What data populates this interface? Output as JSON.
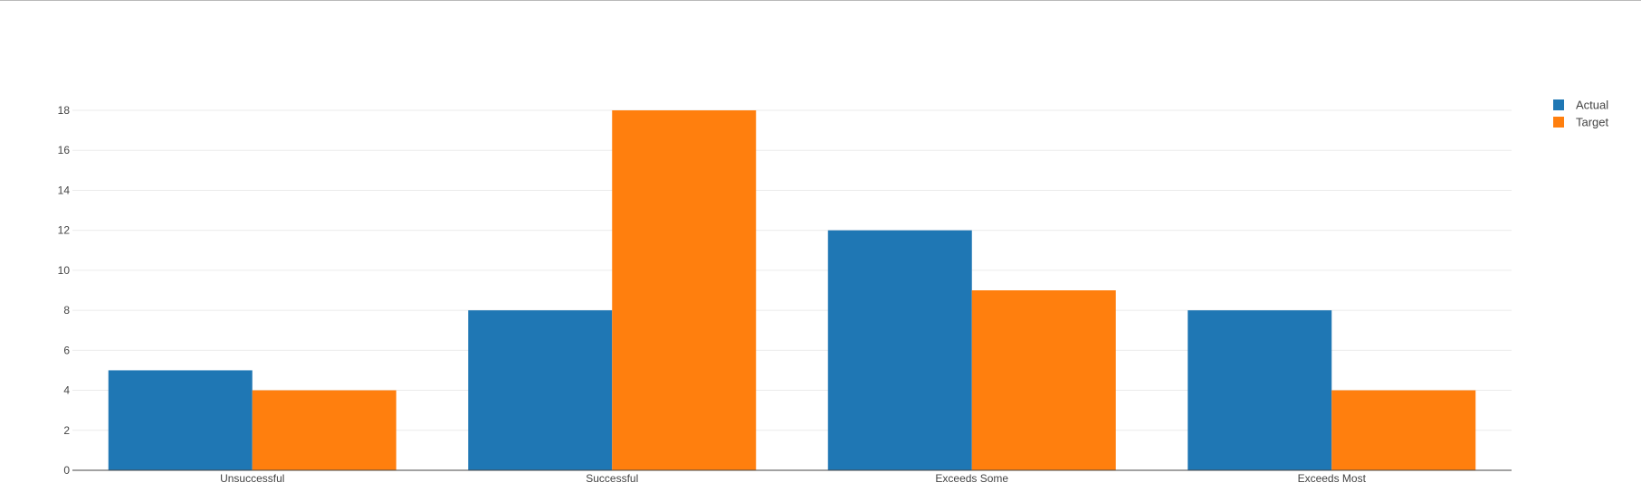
{
  "chart_data": {
    "type": "bar",
    "categories": [
      "Unsuccessful",
      "Successful",
      "Exceeds Some",
      "Exceeds Most"
    ],
    "series": [
      {
        "name": "Actual",
        "color": "#1f77b4",
        "values": [
          5,
          8,
          12,
          8
        ]
      },
      {
        "name": "Target",
        "color": "#ff7f0e",
        "values": [
          4,
          18,
          9,
          4
        ]
      }
    ],
    "yticks": [
      0,
      2,
      4,
      6,
      8,
      10,
      12,
      14,
      16,
      18
    ],
    "ylim": [
      0,
      18
    ],
    "grid": true,
    "legend_position": "top-right",
    "title": "",
    "xlabel": "",
    "ylabel": ""
  }
}
